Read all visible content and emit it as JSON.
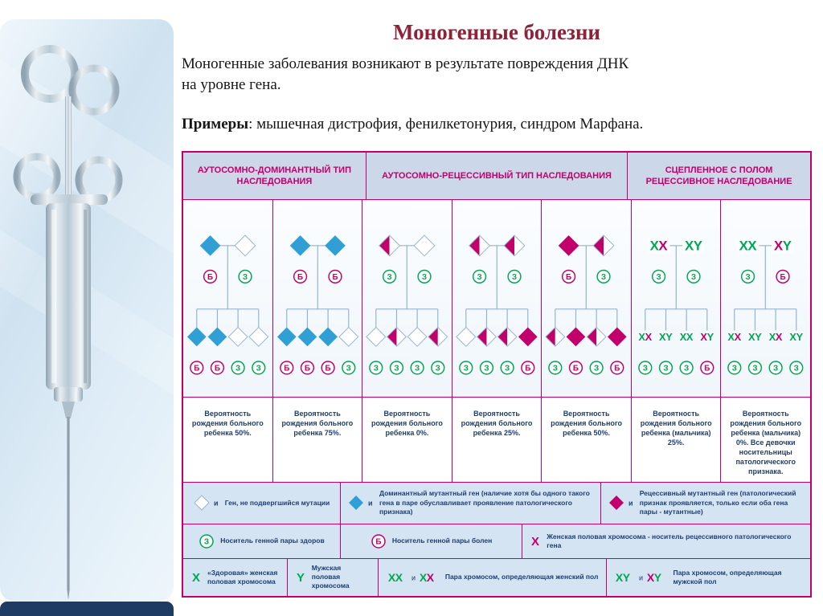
{
  "slide": {
    "title": "Моногенные болезни",
    "intro_lines": [
      "Моногенные заболевания возникают в результате повреждения ДНК",
      "на уровне гена."
    ],
    "examples_label": "Примеры",
    "examples_rest": ": мышечная дистрофия, фенилкетонурия, синдром Марфана."
  },
  "colors": {
    "magenta": "#c2006b",
    "blue": "#2f9fd6",
    "green": "#00a651",
    "navy": "#1d3e71",
    "title_red": "#8e2239",
    "tree_line": "#92b3d2",
    "diamond_stroke": "#9ab4cf",
    "header_bg": "#ccd8ea",
    "legend_bg": "#d5e4f2",
    "strip_navy": "#1d3b63"
  },
  "table": {
    "headers": [
      {
        "label": "АУТОСОМНО-ДОМИНАНТНЫЙ ТИП НАСЛЕДОВАНИЯ",
        "span": 2
      },
      {
        "label": "АУТОСОМНО-РЕЦЕССИВНЫЙ ТИП НАСЛЕДОВАНИЯ",
        "span": 3
      },
      {
        "label": "СЦЕПЛЕННОЕ С ПОЛОМ РЕЦЕССИВНОЕ НАСЛЕДОВАНИЕ",
        "span": 2
      }
    ],
    "status_letters": {
      "healthy": "З",
      "sick": "Б"
    },
    "panels": [
      {
        "kind": "diamond",
        "parents": [
          {
            "style": "blue",
            "status": "Б"
          },
          {
            "style": "white",
            "status": "З"
          }
        ],
        "children": [
          {
            "style": "blue",
            "status": "Б"
          },
          {
            "style": "blue",
            "status": "Б"
          },
          {
            "style": "white",
            "status": "З"
          },
          {
            "style": "white",
            "status": "З"
          }
        ],
        "caption": "Вероятность рождения больного ребенка 50%."
      },
      {
        "kind": "diamond",
        "parents": [
          {
            "style": "blue",
            "status": "Б"
          },
          {
            "style": "blue",
            "status": "Б"
          }
        ],
        "children": [
          {
            "style": "blue",
            "status": "Б"
          },
          {
            "style": "blue",
            "status": "Б"
          },
          {
            "style": "blue",
            "status": "Б"
          },
          {
            "style": "white",
            "status": "З"
          }
        ],
        "caption": "Вероятность рождения больного ребенка 75%."
      },
      {
        "kind": "diamond",
        "parents": [
          {
            "style": "carrier",
            "status": "З"
          },
          {
            "style": "white",
            "status": "З"
          }
        ],
        "children": [
          {
            "style": "white",
            "status": "З"
          },
          {
            "style": "carrier",
            "status": "З"
          },
          {
            "style": "white",
            "status": "З"
          },
          {
            "style": "carrier",
            "status": "З"
          }
        ],
        "caption": "Вероятность рождения больного ребенка 0%."
      },
      {
        "kind": "diamond",
        "parents": [
          {
            "style": "carrier",
            "status": "З"
          },
          {
            "style": "carrier",
            "status": "З"
          }
        ],
        "children": [
          {
            "style": "white",
            "status": "З"
          },
          {
            "style": "carrier",
            "status": "З"
          },
          {
            "style": "carrier",
            "status": "З"
          },
          {
            "style": "magenta",
            "status": "Б"
          }
        ],
        "caption": "Вероятность рождения больного ребенка 25%."
      },
      {
        "kind": "diamond",
        "parents": [
          {
            "style": "magenta",
            "status": "Б"
          },
          {
            "style": "carrier",
            "status": "З"
          }
        ],
        "children": [
          {
            "style": "carrier",
            "status": "З"
          },
          {
            "style": "magenta",
            "status": "Б"
          },
          {
            "style": "carrier",
            "status": "З"
          },
          {
            "style": "magenta",
            "status": "Б"
          }
        ],
        "caption": "Вероятность рождения больного ребенка 50%."
      },
      {
        "kind": "chrom",
        "parents": [
          {
            "pair": "XX",
            "colors": [
              "green",
              "magenta"
            ],
            "status": "З"
          },
          {
            "pair": "XY",
            "colors": [
              "green",
              "green"
            ],
            "status": "З"
          }
        ],
        "children": [
          {
            "pair": "XX",
            "colors": [
              "green",
              "magenta"
            ],
            "status": "З"
          },
          {
            "pair": "XY",
            "colors": [
              "green",
              "green"
            ],
            "status": "З"
          },
          {
            "pair": "XX",
            "colors": [
              "green",
              "green"
            ],
            "status": "З"
          },
          {
            "pair": "XY",
            "colors": [
              "magenta",
              "green"
            ],
            "status": "Б"
          }
        ],
        "caption": "Вероятность рождения больного ребенка (мальчика) 25%."
      },
      {
        "kind": "chrom",
        "parents": [
          {
            "pair": "XX",
            "colors": [
              "green",
              "green"
            ],
            "status": "З"
          },
          {
            "pair": "XY",
            "colors": [
              "magenta",
              "green"
            ],
            "status": "Б"
          }
        ],
        "children": [
          {
            "pair": "XX",
            "colors": [
              "green",
              "magenta"
            ],
            "status": "З"
          },
          {
            "pair": "XY",
            "colors": [
              "green",
              "green"
            ],
            "status": "З"
          },
          {
            "pair": "XX",
            "colors": [
              "green",
              "magenta"
            ],
            "status": "З"
          },
          {
            "pair": "XY",
            "colors": [
              "green",
              "green"
            ],
            "status": "З"
          }
        ],
        "caption": "Вероятность рождения больного ребенка (мальчика) 0%. Все девочки носительницы патологического признака."
      }
    ],
    "legend": [
      [
        {
          "glyph": "gene-diamond",
          "style": "white",
          "mark": "и",
          "icon_name": "normal-gene",
          "text": "Ген, не подвергшийся мутации"
        },
        {
          "glyph": "gene-diamond",
          "style": "blue",
          "mark": "и",
          "icon_name": "dominant-gene",
          "text": "Доминантный мутантный ген (наличие хотя бы одного такого гена в паре обуславливает проявление патологического признака)"
        },
        {
          "glyph": "gene-diamond",
          "style": "magenta",
          "mark": "и",
          "icon_name": "recessive-gene",
          "text": "Рецессивный мутантный ген (патологический признак проявляется, только если оба гена пары - мутантные)"
        }
      ],
      [
        {
          "glyph": "status-circle",
          "letter": "З",
          "icon_name": "healthy-status",
          "text": "Носитель генной пары здоров"
        },
        {
          "glyph": "status-circle",
          "letter": "Б",
          "icon_name": "sick-status",
          "text": "Носитель генной пары болен"
        },
        {
          "glyph": "chrom-letter",
          "letter": "X",
          "color": "magenta",
          "icon_name": "x-chromosome-carrier",
          "text": "Женская половая хромосома - носитель рецессивного патологического гена"
        }
      ],
      [
        {
          "glyph": "chrom-letter",
          "letter": "X",
          "color": "green",
          "icon_name": "x-chromosome-healthy",
          "text": "«Здоровая» женская половая хромосома"
        },
        {
          "glyph": "chrom-letter",
          "letter": "Y",
          "color": "green",
          "icon_name": "y-chromosome",
          "text": "Мужская половая хромосома"
        },
        {
          "glyph": "chrom-pair",
          "pair1": {
            "ch": "XX",
            "colors": [
              "green",
              "green"
            ]
          },
          "connector": "и",
          "pair2": {
            "ch": "XX",
            "colors": [
              "green",
              "magenta"
            ]
          },
          "icon_name": "xx-pair",
          "text": "Пара хромосом, определяющая женский пол"
        },
        {
          "glyph": "chrom-pair",
          "pair1": {
            "ch": "XY",
            "colors": [
              "green",
              "green"
            ]
          },
          "connector": "и",
          "pair2": {
            "ch": "XY",
            "colors": [
              "magenta",
              "green"
            ]
          },
          "icon_name": "xy-pair",
          "text": "Пара хромосом, определяющая мужской пол"
        }
      ]
    ]
  }
}
